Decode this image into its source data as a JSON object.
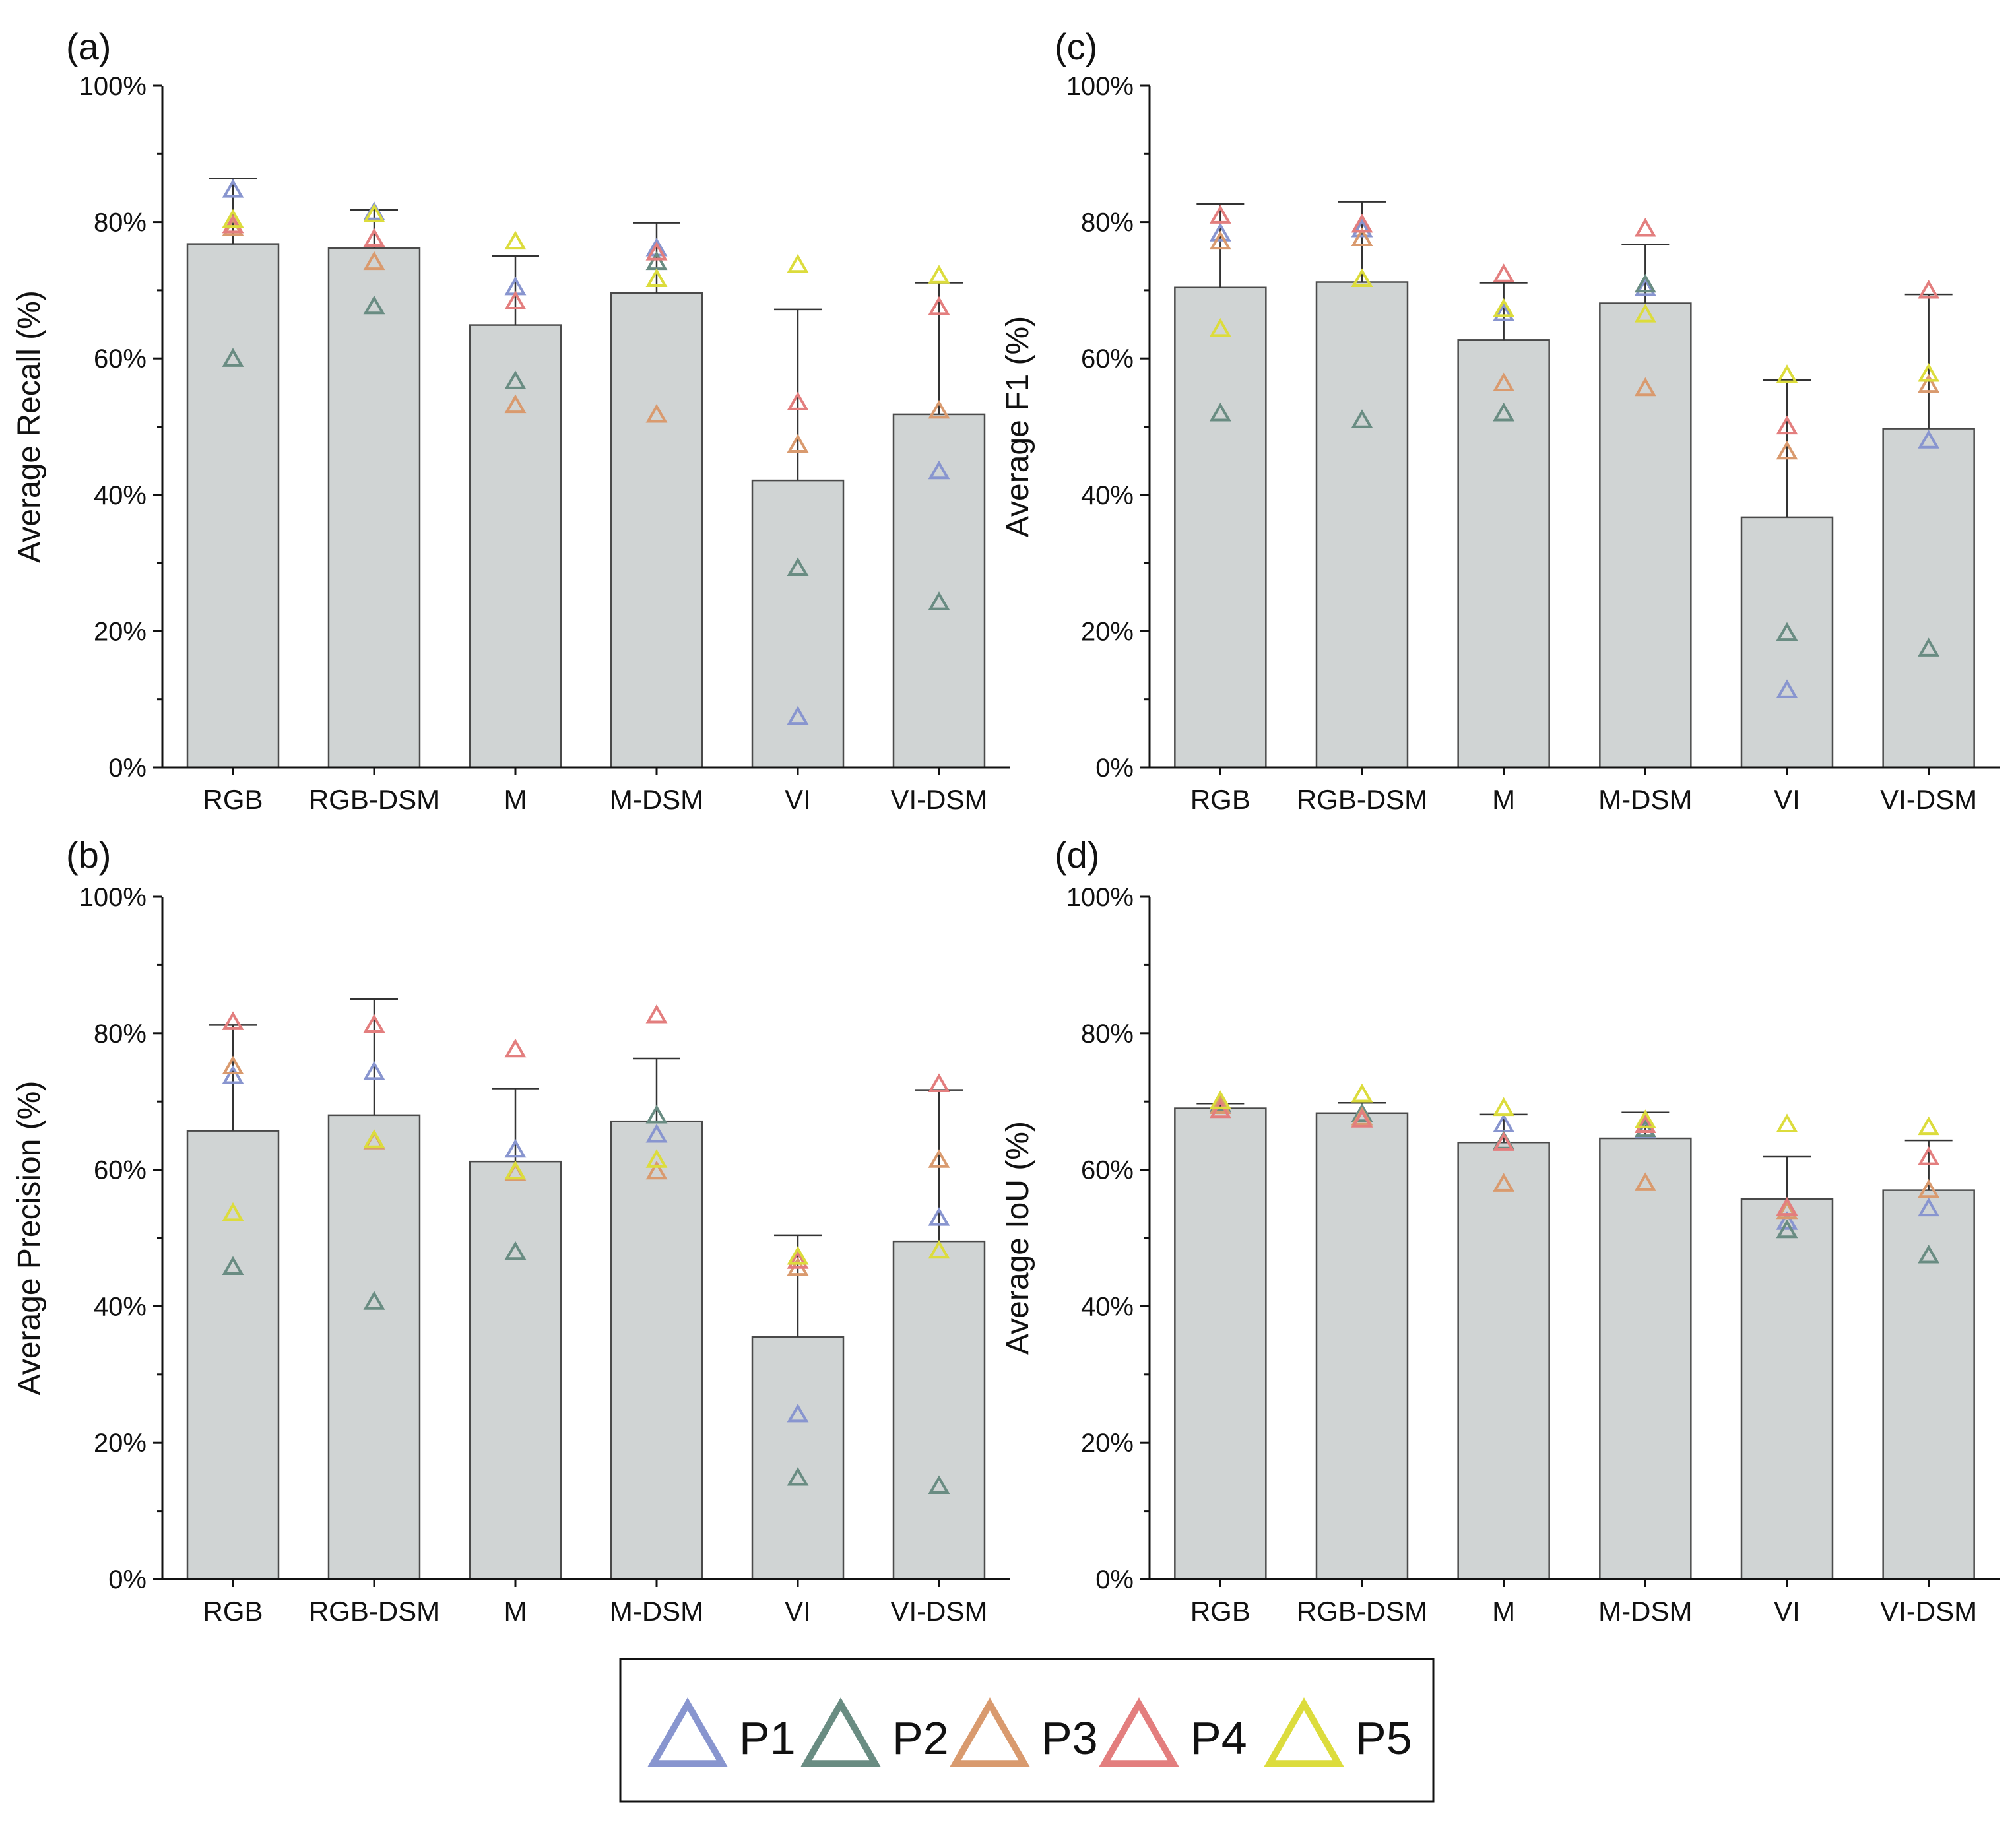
{
  "chart_data": [
    {
      "panel": "(a)",
      "type": "bar",
      "ylabel": "Average Recall (%)",
      "categories": [
        "RGB",
        "RGB-DSM",
        "M",
        "M-DSM",
        "VI",
        "VI-DSM"
      ],
      "yticks": [
        "0%",
        "20%",
        "40%",
        "60%",
        "80%",
        "100%"
      ],
      "ylim": [
        0,
        100
      ],
      "values": [
        76.8,
        76.2,
        64.9,
        69.6,
        42.1,
        51.8
      ],
      "errors": [
        9.6,
        5.6,
        10.1,
        10.3,
        25.1,
        19.3
      ],
      "series": [
        {
          "name": "P1",
          "values": [
            84.6,
            81.3,
            70.3,
            76.0,
            7.3,
            43.3
          ]
        },
        {
          "name": "P2",
          "values": [
            59.8,
            67.5,
            56.5,
            74.0,
            29.1,
            24.1
          ]
        },
        {
          "name": "P3",
          "values": [
            79.0,
            74.0,
            53.0,
            51.6,
            47.2,
            52.2
          ]
        },
        {
          "name": "P4",
          "values": [
            79.4,
            77.4,
            68.2,
            75.4,
            53.4,
            67.4
          ]
        },
        {
          "name": "P5",
          "values": [
            80.2,
            81.0,
            77.0,
            71.5,
            73.6,
            72.0
          ]
        }
      ]
    },
    {
      "panel": "(c)",
      "type": "bar",
      "ylabel": "Average F1 (%)",
      "categories": [
        "RGB",
        "RGB-DSM",
        "M",
        "M-DSM",
        "VI",
        "VI-DSM"
      ],
      "yticks": [
        "0%",
        "20%",
        "40%",
        "60%",
        "80%",
        "100%"
      ],
      "ylim": [
        0,
        100
      ],
      "values": [
        70.4,
        71.2,
        62.7,
        68.1,
        36.7,
        49.7
      ],
      "errors": [
        12.3,
        11.8,
        8.4,
        8.6,
        20.1,
        19.7
      ],
      "series": [
        {
          "name": "P1",
          "values": [
            78.2,
            78.8,
            66.5,
            70.2,
            11.2,
            47.8
          ]
        },
        {
          "name": "P2",
          "values": [
            51.8,
            50.8,
            51.8,
            70.7,
            19.6,
            17.3
          ]
        },
        {
          "name": "P3",
          "values": [
            77.0,
            77.5,
            56.2,
            55.5,
            46.2,
            56.0
          ]
        },
        {
          "name": "P4",
          "values": [
            80.8,
            79.5,
            72.2,
            78.9,
            49.9,
            69.8
          ]
        },
        {
          "name": "P5",
          "values": [
            64.2,
            71.5,
            67.1,
            66.3,
            57.4,
            57.6
          ]
        }
      ]
    },
    {
      "panel": "(b)",
      "type": "bar",
      "ylabel": "Average Precision (%)",
      "categories": [
        "RGB",
        "RGB-DSM",
        "M",
        "M-DSM",
        "VI",
        "VI-DSM"
      ],
      "yticks": [
        "0%",
        "20%",
        "40%",
        "60%",
        "80%",
        "100%"
      ],
      "ylim": [
        0,
        100
      ],
      "values": [
        65.7,
        68.0,
        61.2,
        67.1,
        35.5,
        49.5
      ],
      "errors": [
        15.5,
        17.0,
        10.7,
        9.2,
        14.9,
        22.2
      ],
      "series": [
        {
          "name": "P1",
          "values": [
            73.6,
            74.2,
            62.8,
            65.0,
            24.0,
            52.8
          ]
        },
        {
          "name": "P2",
          "values": [
            45.6,
            40.5,
            47.8,
            67.8,
            14.7,
            13.5
          ]
        },
        {
          "name": "P3",
          "values": [
            75.0,
            64.0,
            59.4,
            59.6,
            45.5,
            61.3
          ]
        },
        {
          "name": "P4",
          "values": [
            81.5,
            81.1,
            77.5,
            82.5,
            46.5,
            72.4
          ]
        },
        {
          "name": "P5",
          "values": [
            53.5,
            64.2,
            59.6,
            61.3,
            47.1,
            48.0
          ]
        }
      ]
    },
    {
      "panel": "(d)",
      "type": "bar",
      "ylabel": "Average IoU (%)",
      "categories": [
        "RGB",
        "RGB-DSM",
        "M",
        "M-DSM",
        "VI",
        "VI-DSM"
      ],
      "yticks": [
        "0%",
        "20%",
        "40%",
        "60%",
        "80%",
        "100%"
      ],
      "ylim": [
        0,
        100
      ],
      "values": [
        69.0,
        68.3,
        64.0,
        64.6,
        55.7,
        57.0
      ],
      "errors": [
        0.7,
        1.5,
        4.1,
        3.8,
        6.2,
        7.3
      ],
      "series": [
        {
          "name": "P1",
          "values": [
            69.3,
            68.0,
            66.5,
            65.6,
            52.2,
            54.2
          ]
        },
        {
          "name": "P2",
          "values": [
            69.5,
            68.0,
            64.0,
            65.8,
            51.0,
            47.3
          ]
        },
        {
          "name": "P3",
          "values": [
            69.2,
            67.5,
            57.8,
            57.9,
            53.8,
            56.9
          ]
        },
        {
          "name": "P4",
          "values": [
            68.6,
            67.2,
            63.8,
            66.4,
            54.3,
            61.7
          ]
        },
        {
          "name": "P5",
          "values": [
            69.9,
            70.9,
            68.9,
            67.1,
            66.5,
            66.1
          ]
        }
      ]
    }
  ],
  "legend": [
    {
      "label": "P1",
      "color": "#8895CF"
    },
    {
      "label": "P2",
      "color": "#698C82"
    },
    {
      "label": "P3",
      "color": "#D99A6E"
    },
    {
      "label": "P4",
      "color": "#E37E7E"
    },
    {
      "label": "P5",
      "color": "#DCDC3C"
    }
  ],
  "style": {
    "bar_fill": "#D0D4D4",
    "bar_stroke": "#4A4A4A",
    "axis_color": "#111111"
  }
}
